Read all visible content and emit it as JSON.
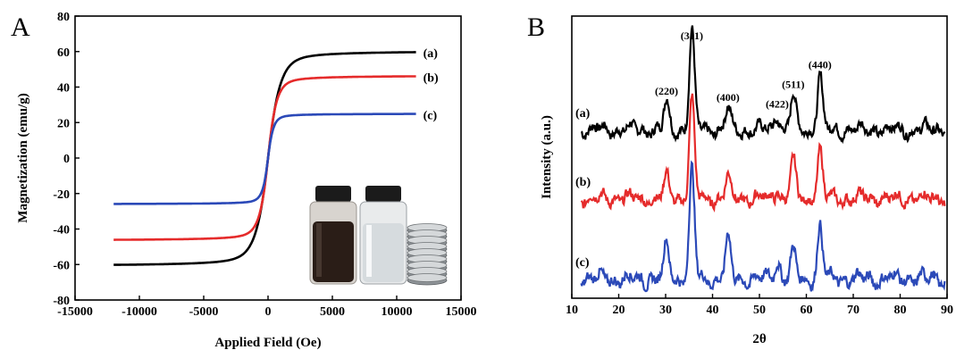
{
  "chart_data": [
    {
      "panel_label": "A",
      "type": "line",
      "xlabel": "Applied Field (Oe)",
      "ylabel": "Magnetization (emu/g)",
      "xlim": [
        -15000,
        15000
      ],
      "ylim": [
        -80,
        80
      ],
      "xticks": [
        -15000,
        -10000,
        -5000,
        0,
        5000,
        10000,
        15000
      ],
      "yticks": [
        -80,
        -60,
        -40,
        -20,
        0,
        20,
        40,
        60,
        80
      ],
      "x_range": [
        -12000,
        11500
      ],
      "series": [
        {
          "name": "(a)",
          "color": "#000000",
          "ms": 60.5,
          "h0": 1000,
          "ms_neg": 61
        },
        {
          "name": "(b)",
          "color": "#e52b2b",
          "ms": 46.5,
          "h0": 700,
          "ms_neg": 46.5
        },
        {
          "name": "(c)",
          "color": "#2b49b8",
          "ms": 25,
          "h0": 450,
          "ms_neg": 26
        }
      ],
      "inset": "photo of magnetic fluid vials and magnets"
    },
    {
      "panel_label": "B",
      "type": "line",
      "xlabel": "2θ",
      "ylabel": "Intensity (a.u.)",
      "xlim": [
        10,
        90
      ],
      "xticks": [
        10,
        20,
        30,
        40,
        50,
        60,
        70,
        80,
        90
      ],
      "peaks": [
        {
          "label": "(220)",
          "x": 30.2
        },
        {
          "label": "(311)",
          "x": 35.6
        },
        {
          "label": "(400)",
          "x": 43.3
        },
        {
          "label": "(422)",
          "x": 53.8
        },
        {
          "label": "(511)",
          "x": 57.2
        },
        {
          "label": "(440)",
          "x": 62.9
        }
      ],
      "series": [
        {
          "name": "(a)",
          "color": "#000000",
          "heights": [
            0.28,
            1.0,
            0.22,
            0.15,
            0.35,
            0.55
          ]
        },
        {
          "name": "(b)",
          "color": "#e52b2b",
          "heights": [
            0.22,
            1.0,
            0.22,
            0.08,
            0.38,
            0.48
          ]
        },
        {
          "name": "(c)",
          "color": "#2b49b8",
          "heights": [
            0.32,
            1.0,
            0.38,
            0.18,
            0.25,
            0.48
          ]
        }
      ]
    }
  ]
}
